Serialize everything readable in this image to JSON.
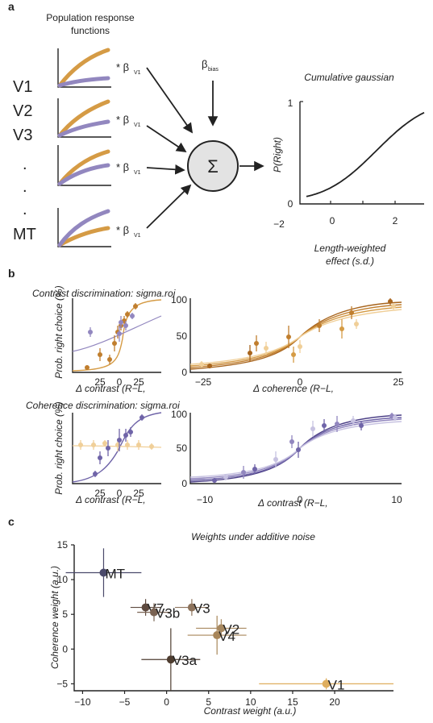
{
  "colors": {
    "orange": "#d59b45",
    "purple": "#9287bf",
    "orange_light": "#f0cf98",
    "purple_light": "#c7c2e1",
    "dark": "#222222",
    "sigma_fill": "#e3e3e3"
  },
  "panel_a": {
    "label": "a",
    "title_line1": "Population response",
    "title_line2": "functions",
    "areas": [
      "V1",
      "V2",
      "V3",
      ".",
      ".",
      ".",
      "MT"
    ],
    "multiplier": "* β",
    "beta_sub": "V1",
    "beta_bias": "β",
    "beta_bias_sub": "bias",
    "sigma_symbol": "Σ",
    "cdf_title": "Cumulative gaussian",
    "ylabel": "P(Right)",
    "ytick_top": "1",
    "ytick_bottom": "0",
    "xticks": [
      "−2",
      "0",
      "2"
    ],
    "xlabel_line1": "Length-weighted",
    "xlabel_line2": "effect (s.d.)",
    "mini_plots": [
      {
        "top_series": "orange",
        "bottom_series": "purple"
      },
      {
        "top_series": "orange",
        "bottom_series": "purple"
      },
      {
        "top_series": "orange",
        "bottom_series": "purple"
      },
      {
        "top_series": "purple",
        "bottom_series": "orange"
      }
    ]
  },
  "panel_b": {
    "label": "b",
    "row1": {
      "title": "Contrast discrimination: sigma.roi",
      "ylabel": "Prob. right choice (%)",
      "left_xlabel": "Δ contrast (R−L,",
      "left_xticks": [
        "25",
        "0",
        "25"
      ],
      "right_xlabel": "Δ coherence (R−L,",
      "right_xticks": [
        "−25",
        "0",
        "25"
      ],
      "right_yticks": [
        "100",
        "50",
        "0"
      ]
    },
    "row2": {
      "title": "Coherence discrimination: sigma.roi",
      "ylabel": "Prob. right choice (%)",
      "left_xlabel": "Δ contrast (R−L,",
      "left_xticks": [
        "25",
        "0",
        "25"
      ],
      "right_xlabel": "Δ contrast (R−L,",
      "right_xticks": [
        "−10",
        "0",
        "10"
      ],
      "right_yticks": [
        "100",
        "50",
        "0"
      ]
    }
  },
  "panel_c": {
    "label": "c",
    "chart_data": {
      "type": "scatter",
      "title": "Weights under additive noise",
      "xlabel": "Contrast weight (a.u.)",
      "ylabel": "Coherence weight (a.u.)",
      "xlim": [
        -11,
        27
      ],
      "ylim": [
        -6,
        15
      ],
      "xticks": [
        "−10",
        "−5",
        "0",
        "5",
        "10",
        "15",
        "20"
      ],
      "yticks": [
        "15",
        "10",
        "5",
        "0",
        "−5"
      ],
      "points": [
        {
          "label": "MT",
          "x": -7.5,
          "y": 11,
          "xerr": 4.5,
          "yerr": 3.5,
          "color": "#4b4a6b"
        },
        {
          "label": "V7",
          "x": -2.5,
          "y": 6,
          "xerr": 1.8,
          "yerr": 1.2,
          "color": "#5e4a3f"
        },
        {
          "label": "V3b",
          "x": -1.5,
          "y": 5.3,
          "xerr": 2.0,
          "yerr": 1.3,
          "color": "#7a6353"
        },
        {
          "label": "V3",
          "x": 3,
          "y": 6,
          "xerr": 2.0,
          "yerr": 1.2,
          "color": "#8d735c"
        },
        {
          "label": "V2",
          "x": 6.5,
          "y": 3,
          "xerr": 3.0,
          "yerr": 1.3,
          "color": "#a88960"
        },
        {
          "label": "V4",
          "x": 6,
          "y": 2,
          "xerr": 3.5,
          "yerr": 2.8,
          "color": "#a8865a"
        },
        {
          "label": "V3a",
          "x": 0.5,
          "y": -1.5,
          "xerr": 3.5,
          "yerr": 4.5,
          "color": "#4e3d30"
        },
        {
          "label": "V1",
          "x": 19,
          "y": -5,
          "xerr": 8.0,
          "yerr": 0.8,
          "color": "#dfae5e"
        }
      ]
    }
  }
}
